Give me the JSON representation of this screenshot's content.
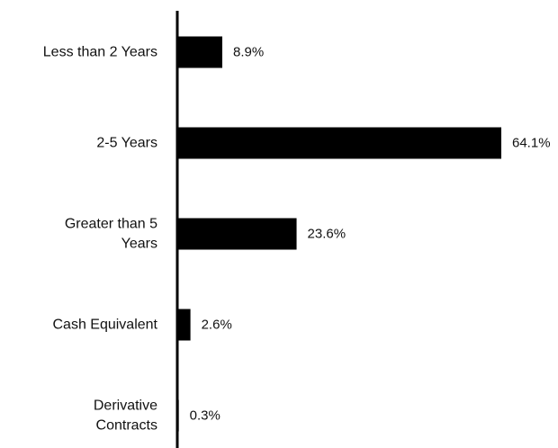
{
  "chart_data": {
    "type": "bar",
    "orientation": "horizontal",
    "categories": [
      [
        "Less than 2 Years"
      ],
      [
        "2-5 Years"
      ],
      [
        "Greater than 5",
        "Years"
      ],
      [
        "Cash Equivalent"
      ],
      [
        "Derivative",
        "Contracts"
      ]
    ],
    "values": [
      8.9,
      64.1,
      23.6,
      2.6,
      0.3
    ],
    "data_labels": [
      "8.9%",
      "64.1%",
      "23.6%",
      "2.6%",
      "0.3%"
    ],
    "unit": "%",
    "xlim": [
      0,
      64.1
    ],
    "grid": false,
    "legend": "none",
    "bar_color": "#000000",
    "axis_color": "#000000"
  }
}
